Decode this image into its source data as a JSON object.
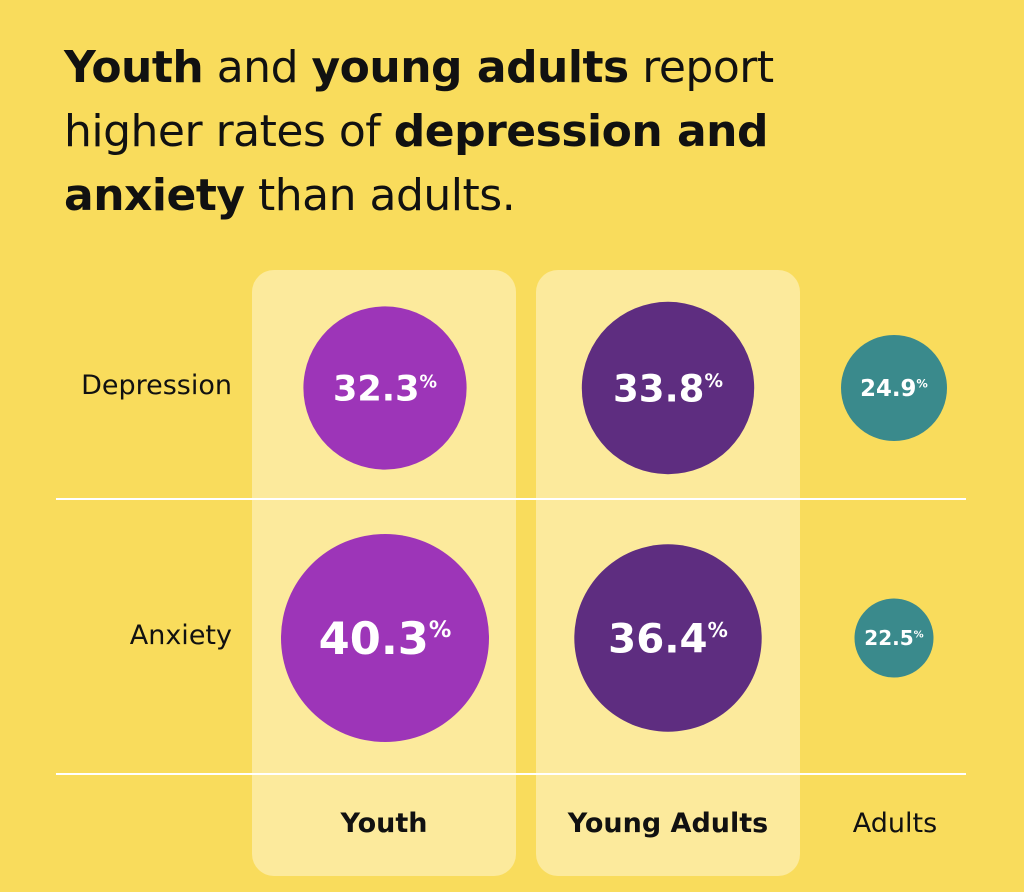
{
  "title": {
    "w1": "Youth",
    "w2": " and ",
    "w3": "young adults",
    "w4": " report higher rates of ",
    "w5": "depression and anxiety",
    "w6": " than adults."
  },
  "chart_data": {
    "type": "bubble",
    "title": "Youth and young adults report higher rates of depression and anxiety than adults.",
    "categories": [
      "Youth",
      "Young Adults",
      "Adults"
    ],
    "rows": [
      "Depression",
      "Anxiety"
    ],
    "unit": "%",
    "series": [
      {
        "name": "Depression",
        "values": [
          32.3,
          33.8,
          24.9
        ]
      },
      {
        "name": "Anxiety",
        "values": [
          40.3,
          36.4,
          22.5
        ]
      }
    ],
    "colors": {
      "Youth": "#9D35B8",
      "Young Adults": "#5E2D80",
      "Adults": "#3A8A8C"
    }
  }
}
